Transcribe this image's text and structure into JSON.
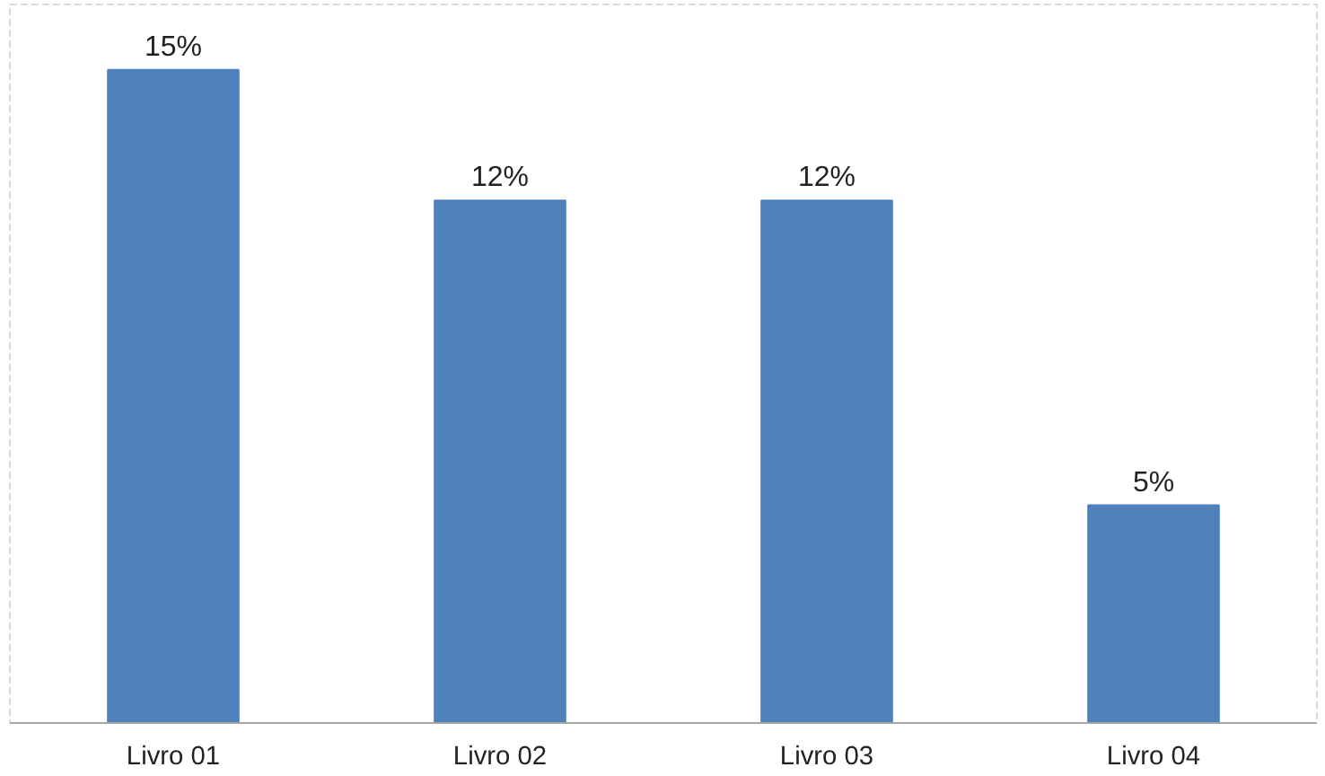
{
  "chart_data": {
    "type": "bar",
    "categories": [
      "Livro 01",
      "Livro 02",
      "Livro 03",
      "Livro 04"
    ],
    "values": [
      15,
      12,
      12,
      5
    ],
    "color": "#4f81bd",
    "value_labels": [
      "15%",
      "12%",
      "12%",
      "5%"
    ]
  }
}
